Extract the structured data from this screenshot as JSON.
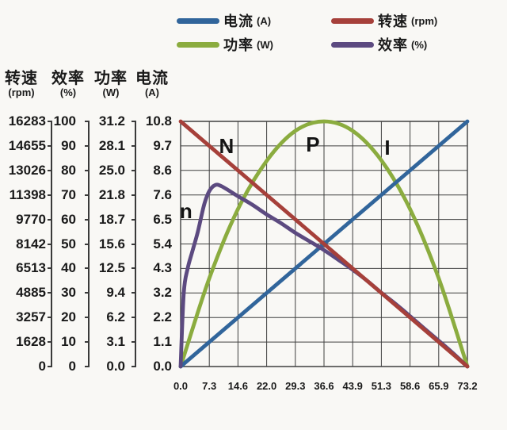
{
  "legend": {
    "items": [
      {
        "label": "电流",
        "unit": "(A)",
        "color": "#31659B"
      },
      {
        "label": "转速",
        "unit": "(rpm)",
        "color": "#A6403A"
      },
      {
        "label": "功率",
        "unit": "(W)",
        "color": "#8BAC3F"
      },
      {
        "label": "效率",
        "unit": "(%)",
        "color": "#5C4A80"
      }
    ]
  },
  "chart_data": {
    "type": "line",
    "x_axis": {
      "min": 0,
      "max": 73.2,
      "ticks": [
        "0.0",
        "7.3",
        "14.6",
        "22.0",
        "29.3",
        "36.6",
        "43.9",
        "51.3",
        "58.6",
        "65.9",
        "73.2"
      ]
    },
    "y_axes": [
      {
        "name": "转速",
        "unit": "(rpm)",
        "max": 16283,
        "ticks": [
          "16283",
          "14655",
          "13026",
          "11398",
          "9770",
          "8142",
          "6513",
          "4885",
          "3257",
          "1628",
          "0"
        ]
      },
      {
        "name": "效率",
        "unit": "(%)",
        "max": 100,
        "ticks": [
          "100",
          "90",
          "80",
          "70",
          "60",
          "50",
          "40",
          "30",
          "20",
          "10",
          "0"
        ]
      },
      {
        "name": "功率",
        "unit": "(W)",
        "max": 31.2,
        "ticks": [
          "31.2",
          "28.1",
          "25.0",
          "21.8",
          "18.7",
          "15.6",
          "12.5",
          "9.4",
          "6.2",
          "3.1",
          "0.0"
        ]
      },
      {
        "name": "电流",
        "unit": "(A)",
        "max": 10.8,
        "ticks": [
          "10.8",
          "9.7",
          "8.6",
          "7.6",
          "6.5",
          "5.4",
          "4.3",
          "3.2",
          "2.2",
          "1.1",
          "0.0"
        ]
      }
    ],
    "grid": {
      "cols": 10,
      "rows": 10,
      "line_color": "#3f3f3f"
    },
    "series": [
      {
        "name": "功率",
        "unit": "(W)",
        "color": "#8BAC3F",
        "axis": "功率",
        "points": [
          [
            0,
            0
          ],
          [
            7.3,
            11.2
          ],
          [
            14.6,
            20.0
          ],
          [
            22.0,
            26.2
          ],
          [
            29.3,
            30.0
          ],
          [
            36.6,
            31.2
          ],
          [
            43.9,
            30.0
          ],
          [
            51.3,
            26.2
          ],
          [
            58.6,
            20.0
          ],
          [
            65.9,
            11.2
          ],
          [
            73.2,
            0
          ]
        ]
      },
      {
        "name": "电流",
        "unit": "(A)",
        "color": "#31659B",
        "axis": "电流",
        "points": [
          [
            0,
            0
          ],
          [
            73.2,
            10.8
          ]
        ]
      },
      {
        "name": "效率",
        "unit": "(%)",
        "color": "#5C4A80",
        "axis": "效率",
        "points": [
          [
            0,
            0
          ],
          [
            0.8,
            30
          ],
          [
            1.8,
            40
          ],
          [
            3,
            47
          ],
          [
            4.4,
            55
          ],
          [
            6,
            66
          ],
          [
            7.3,
            71.5
          ],
          [
            8.8,
            74
          ],
          [
            10.5,
            73.5
          ],
          [
            14.6,
            69.5
          ],
          [
            18.3,
            66
          ],
          [
            22,
            62
          ],
          [
            25.6,
            58.5
          ],
          [
            29.3,
            54.5
          ],
          [
            33,
            51
          ],
          [
            36.6,
            47.5
          ],
          [
            40.3,
            43.5
          ],
          [
            43.9,
            39.5
          ],
          [
            47.6,
            35
          ],
          [
            51.3,
            30
          ],
          [
            54.9,
            25.5
          ],
          [
            58.6,
            20.5
          ],
          [
            62.2,
            15.5
          ],
          [
            65.9,
            10.5
          ],
          [
            69.5,
            5.5
          ],
          [
            73.2,
            0
          ]
        ]
      },
      {
        "name": "转速",
        "unit": "(rpm)",
        "color": "#A6403A",
        "axis": "转速",
        "points": [
          [
            0,
            16283
          ],
          [
            73.2,
            0
          ]
        ]
      }
    ],
    "annotations": [
      {
        "text": "N",
        "fx": 0.16,
        "fy": 0.9
      },
      {
        "text": "P",
        "fx": 0.461,
        "fy": 0.906
      },
      {
        "text": "I",
        "fx": 0.721,
        "fy": 0.893
      },
      {
        "text": "n",
        "fx": 0.019,
        "fy": 0.634
      }
    ]
  }
}
